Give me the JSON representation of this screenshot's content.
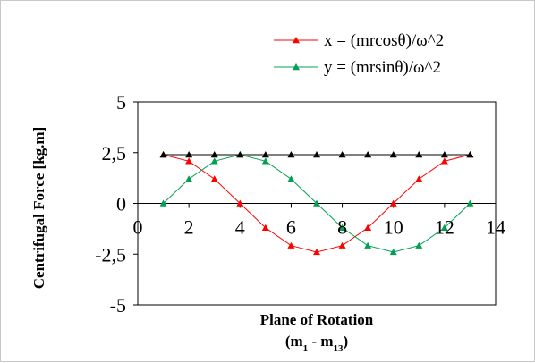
{
  "chart_data": {
    "type": "line",
    "title": "",
    "xlabel": "Plane of Rotation",
    "xlabel_line2": "(m1 - m13)",
    "ylabel": "Centrifugal Force [kg.m]",
    "xlim": [
      0,
      14
    ],
    "ylim": [
      -5,
      5
    ],
    "x_ticks": [
      "0",
      "2",
      "4",
      "6",
      "8",
      "10",
      "12",
      "14"
    ],
    "y_ticks": [
      "5",
      "2,5",
      "0",
      "-2,5",
      "-5"
    ],
    "grid": false,
    "legend_position": "top-right",
    "series": [
      {
        "name": "x = (mrcosθ)/ω^2",
        "color": "#ff0000",
        "marker": "triangle",
        "x": [
          1,
          2,
          3,
          4,
          5,
          6,
          7,
          8,
          9,
          10,
          11,
          12,
          13
        ],
        "y": [
          2.4,
          2.08,
          1.2,
          0,
          -1.2,
          -2.08,
          -2.4,
          -2.08,
          -1.2,
          0,
          1.2,
          2.08,
          2.4
        ]
      },
      {
        "name": "y = (mrsinθ)/ω^2",
        "color": "#00a050",
        "marker": "triangle",
        "x": [
          1,
          2,
          3,
          4,
          5,
          6,
          7,
          8,
          9,
          10,
          11,
          12,
          13
        ],
        "y": [
          0,
          1.2,
          2.08,
          2.4,
          2.08,
          1.2,
          0,
          -1.2,
          -2.08,
          -2.4,
          -2.08,
          -1.2,
          0
        ]
      },
      {
        "color": "#000000",
        "marker": "triangle",
        "x": [
          1,
          2,
          3,
          4,
          5,
          6,
          7,
          8,
          9,
          10,
          11,
          12,
          13
        ],
        "y": [
          2.4,
          2.4,
          2.4,
          2.4,
          2.4,
          2.4,
          2.4,
          2.4,
          2.4,
          2.4,
          2.4,
          2.4,
          2.4
        ]
      }
    ]
  }
}
